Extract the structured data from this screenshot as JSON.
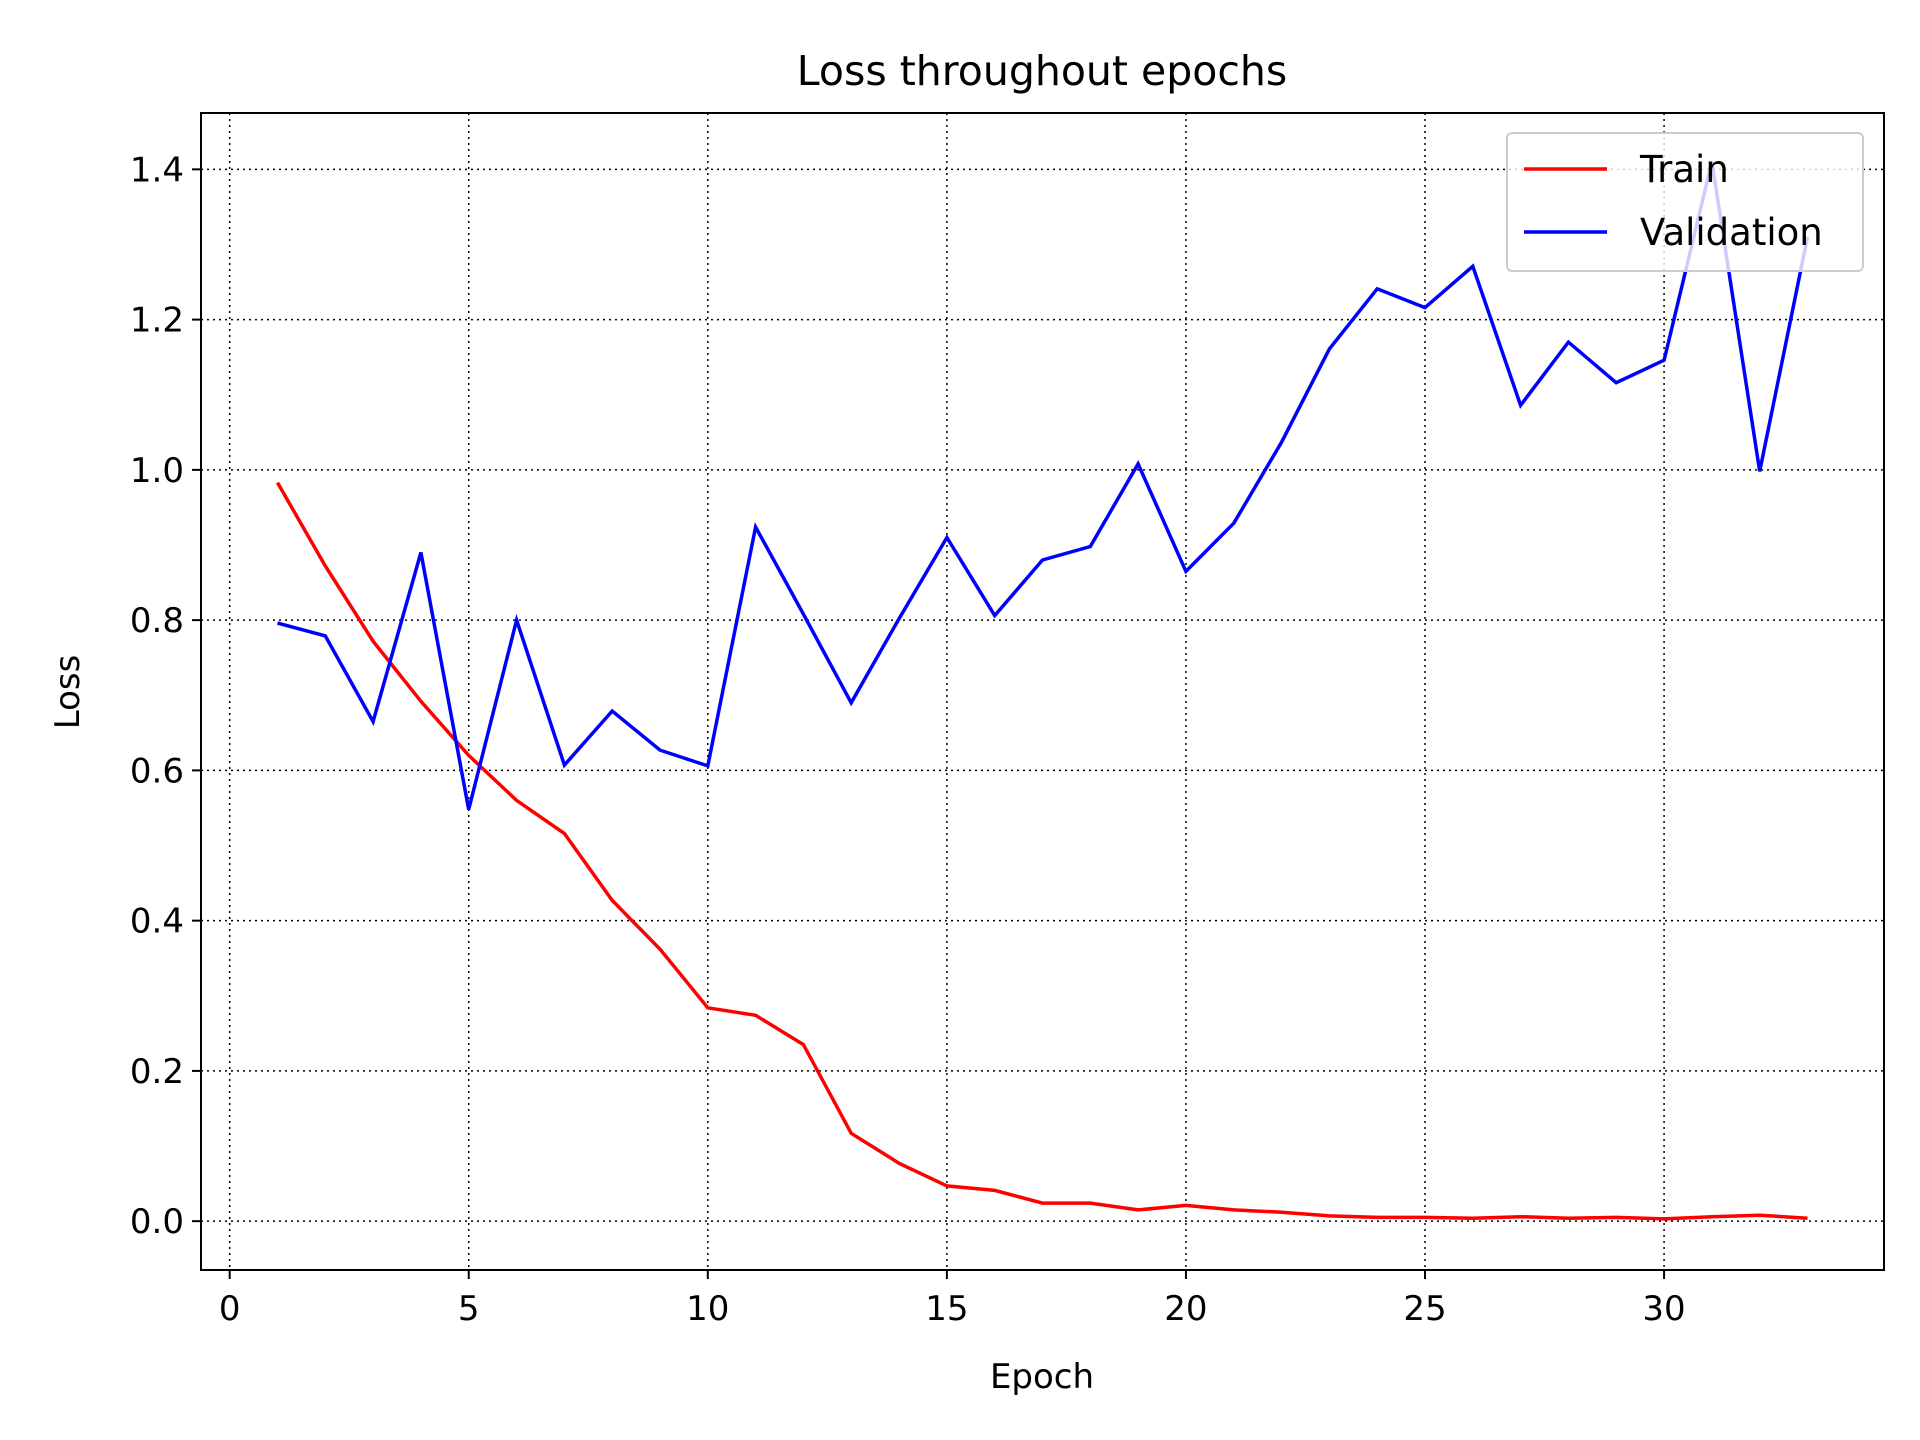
{
  "chart_data": {
    "type": "line",
    "title": "Loss throughout epochs",
    "xlabel": "Epoch",
    "ylabel": "Loss",
    "xlim": [
      -0.6,
      34.6
    ],
    "ylim": [
      -0.065,
      1.475
    ],
    "xticks": [
      0,
      5,
      10,
      15,
      20,
      25,
      30
    ],
    "yticks": [
      0.0,
      0.2,
      0.4,
      0.6,
      0.8,
      1.0,
      1.2,
      1.4
    ],
    "ytick_labels": [
      "0.0",
      "0.2",
      "0.4",
      "0.6",
      "0.8",
      "1.0",
      "1.2",
      "1.4"
    ],
    "grid": true,
    "grid_style": "dotted",
    "legend_position": "top-right",
    "x": [
      1,
      2,
      3,
      4,
      5,
      6,
      7,
      8,
      9,
      10,
      11,
      12,
      13,
      14,
      15,
      16,
      17,
      18,
      19,
      20,
      21,
      22,
      23,
      24,
      25,
      26,
      27,
      28,
      29,
      30,
      31,
      32,
      33
    ],
    "series": [
      {
        "name": "Train",
        "color": "#ff0000",
        "values": [
          0.983,
          0.872,
          0.772,
          0.692,
          0.62,
          0.56,
          0.516,
          0.427,
          0.362,
          0.284,
          0.274,
          0.235,
          0.117,
          0.077,
          0.047,
          0.041,
          0.024,
          0.024,
          0.015,
          0.021,
          0.015,
          0.012,
          0.007,
          0.005,
          0.005,
          0.004,
          0.006,
          0.004,
          0.005,
          0.003,
          0.006,
          0.008,
          0.004
        ]
      },
      {
        "name": "Validation",
        "color": "#0000ff",
        "values": [
          0.796,
          0.779,
          0.665,
          0.89,
          0.548,
          0.8,
          0.607,
          0.679,
          0.627,
          0.606,
          0.924,
          0.808,
          0.69,
          0.802,
          0.91,
          0.806,
          0.88,
          0.898,
          1.008,
          0.865,
          0.929,
          1.037,
          1.161,
          1.241,
          1.216,
          1.271,
          1.086,
          1.17,
          1.116,
          1.146,
          1.41,
          0.998,
          1.31
        ]
      }
    ]
  }
}
